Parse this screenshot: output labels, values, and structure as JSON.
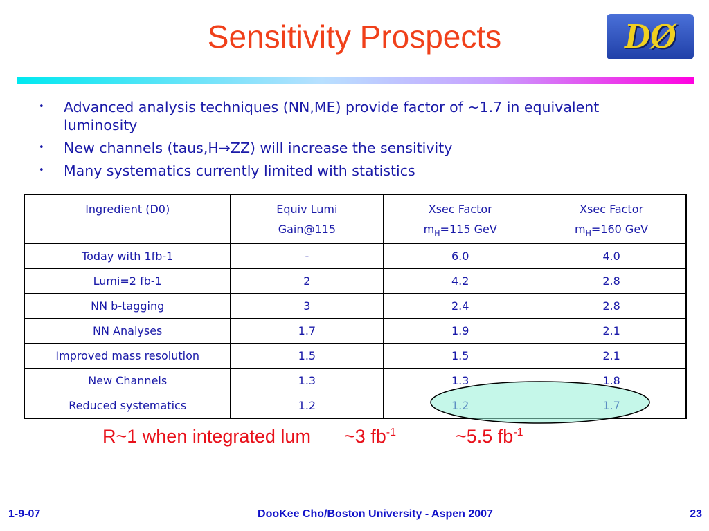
{
  "header": {
    "title": "Sensitivity Prospects",
    "logo": "DØ"
  },
  "bullets": [
    "Advanced analysis techniques (NN,ME) provide factor of ~1.7 in equivalent luminosity",
    "New channels (taus,H→ZZ) will increase the sensitivity",
    "Many systematics currently limited with statistics"
  ],
  "table": {
    "header": [
      [
        {
          "text": "Ingredient (D0)"
        }
      ],
      [
        {
          "text": "Equiv Lumi"
        },
        {
          "text": "Gain@115"
        }
      ],
      [
        {
          "text": "Xsec Factor"
        },
        {
          "text": "m",
          "sub": "H",
          "rest": "=115 GeV"
        }
      ],
      [
        {
          "text": "Xsec Factor"
        },
        {
          "text": "m",
          "sub": "H",
          "rest": "=160 GeV"
        }
      ]
    ],
    "rows": [
      [
        "Today with 1fb-1",
        "-",
        "6.0",
        "4.0"
      ],
      [
        "Lumi=2 fb-1",
        "2",
        "4.2",
        "2.8"
      ],
      [
        "NN b-tagging",
        "3",
        "2.4",
        "2.8"
      ],
      [
        "NN Analyses",
        "1.7",
        "1.9",
        "2.1"
      ],
      [
        "Improved mass resolution",
        "1.5",
        "1.5",
        "2.1"
      ],
      [
        "New Channels",
        "1.3",
        "1.3",
        "1.8"
      ],
      [
        "Reduced systematics",
        "1.2",
        "1.2",
        "1.7"
      ]
    ]
  },
  "summary": {
    "text": "R~1 when integrated lum",
    "value1": "~3 fb",
    "sup1": "-1",
    "value2": "~5.5 fb",
    "sup2": "-1"
  },
  "footer": {
    "date": "1-9-07",
    "author": "DooKee Cho/Boston University - Aspen 2007",
    "page": "23"
  }
}
